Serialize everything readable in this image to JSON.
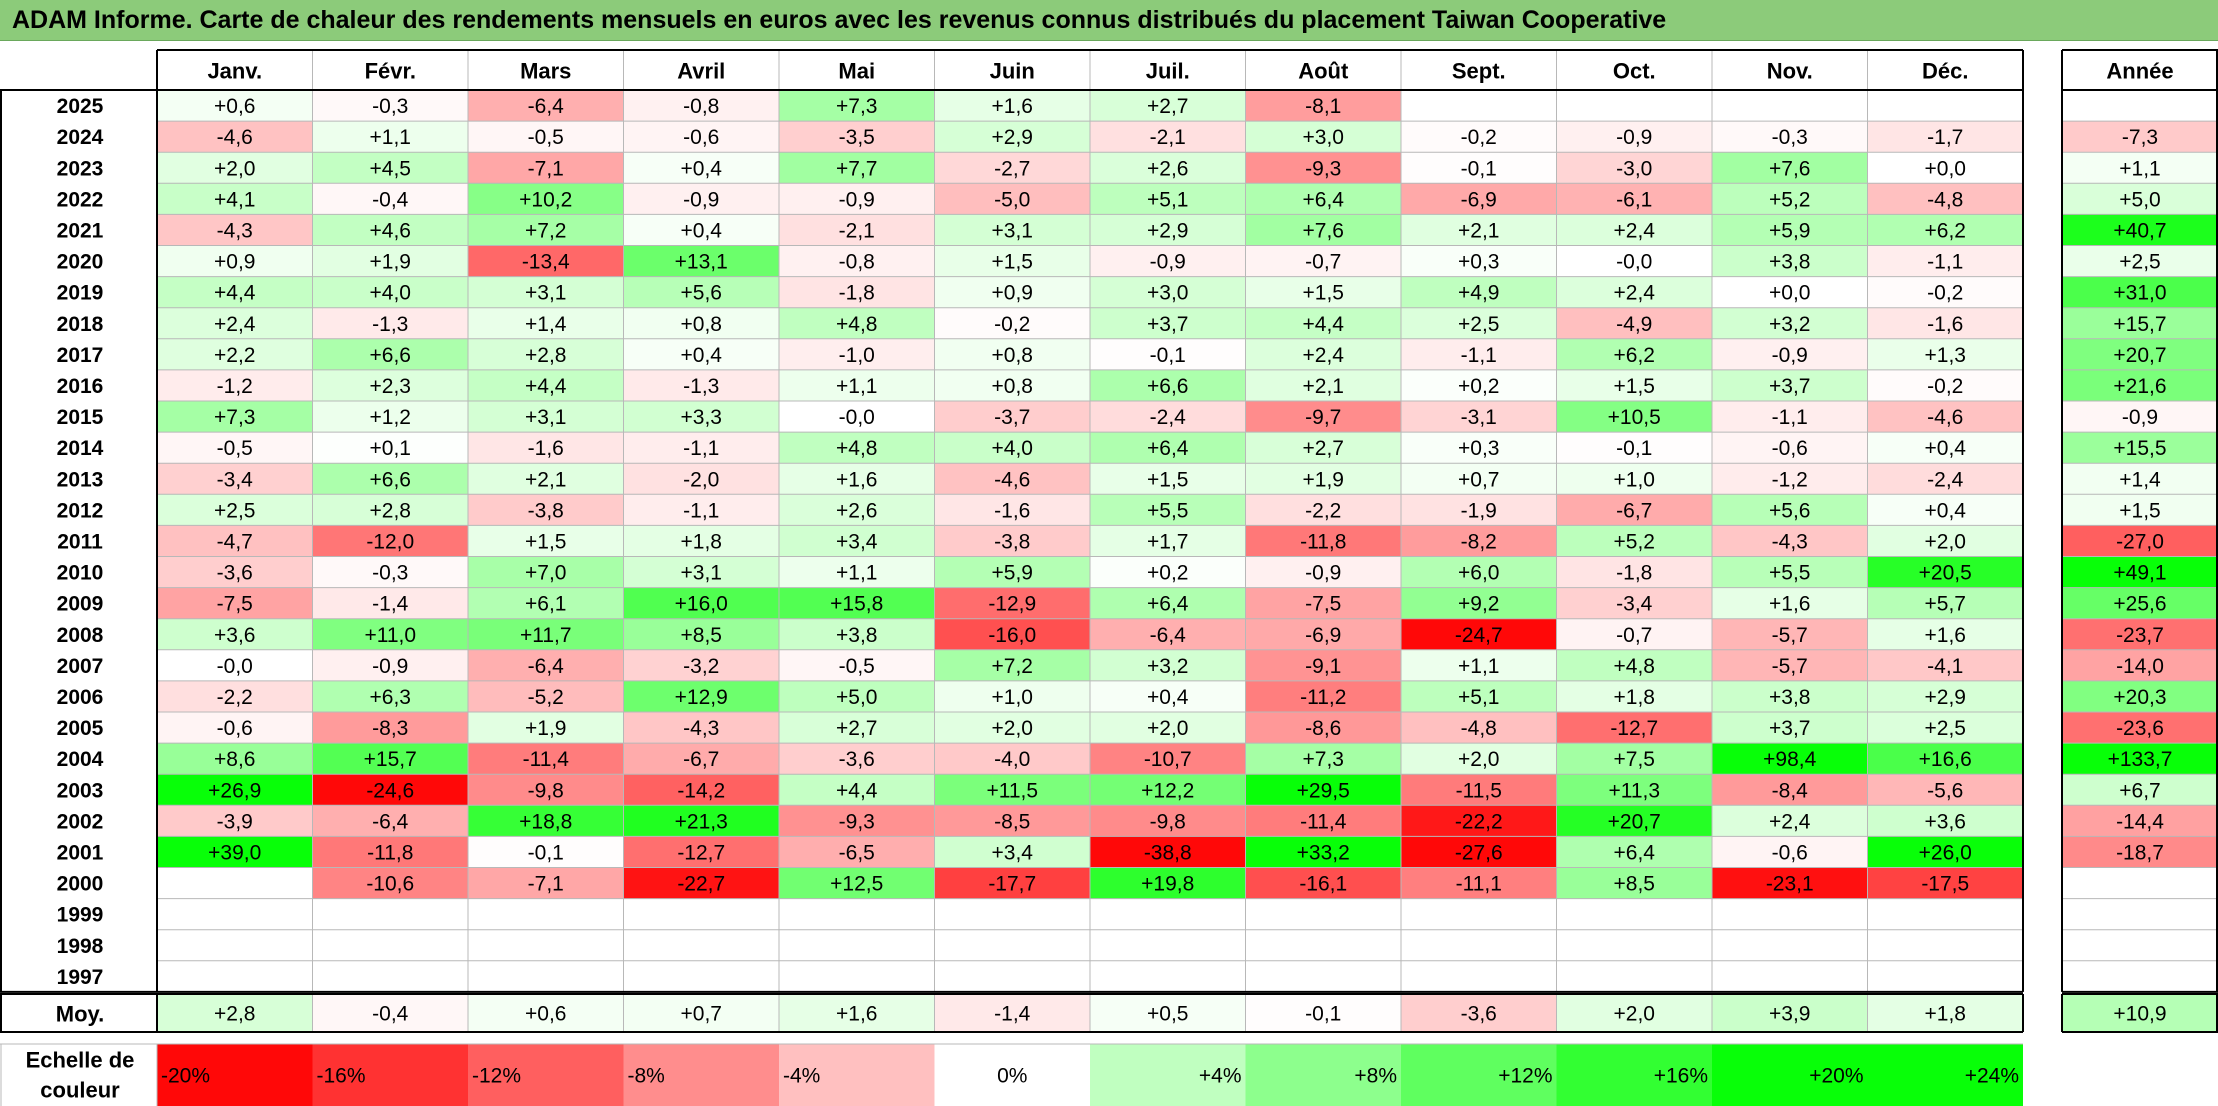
{
  "title": "ADAM Informe. Carte de chaleur des rendements mensuels en euros avec les revenus connus distribués du placement Taiwan Cooperative",
  "chart_data": {
    "type": "heatmap",
    "columns": [
      "Janv.",
      "Févr.",
      "Mars",
      "Avril",
      "Mai",
      "Juin",
      "Juil.",
      "Août",
      "Sept.",
      "Oct.",
      "Nov.",
      "Déc."
    ],
    "year_column": "Année",
    "rows": [
      {
        "label": "2025",
        "values": [
          "+0,6",
          "-0,3",
          "-6,4",
          "-0,8",
          "+7,3",
          "+1,6",
          "+2,7",
          "-8,1",
          "",
          "",
          "",
          ""
        ],
        "year": ""
      },
      {
        "label": "2024",
        "values": [
          "-4,6",
          "+1,1",
          "-0,5",
          "-0,6",
          "-3,5",
          "+2,9",
          "-2,1",
          "+3,0",
          "-0,2",
          "-0,9",
          "-0,3",
          "-1,7"
        ],
        "year": "-7,3"
      },
      {
        "label": "2023",
        "values": [
          "+2,0",
          "+4,5",
          "-7,1",
          "+0,4",
          "+7,7",
          "-2,7",
          "+2,6",
          "-9,3",
          "-0,1",
          "-3,0",
          "+7,6",
          "+0,0"
        ],
        "year": "+1,1"
      },
      {
        "label": "2022",
        "values": [
          "+4,1",
          "-0,4",
          "+10,2",
          "-0,9",
          "-0,9",
          "-5,0",
          "+5,1",
          "+6,4",
          "-6,9",
          "-6,1",
          "+5,2",
          "-4,8"
        ],
        "year": "+5,0"
      },
      {
        "label": "2021",
        "values": [
          "-4,3",
          "+4,6",
          "+7,2",
          "+0,4",
          "-2,1",
          "+3,1",
          "+2,9",
          "+7,6",
          "+2,1",
          "+2,4",
          "+5,9",
          "+6,2"
        ],
        "year": "+40,7"
      },
      {
        "label": "2020",
        "values": [
          "+0,9",
          "+1,9",
          "-13,4",
          "+13,1",
          "-0,8",
          "+1,5",
          "-0,9",
          "-0,7",
          "+0,3",
          "-0,0",
          "+3,8",
          "-1,1"
        ],
        "year": "+2,5"
      },
      {
        "label": "2019",
        "values": [
          "+4,4",
          "+4,0",
          "+3,1",
          "+5,6",
          "-1,8",
          "+0,9",
          "+3,0",
          "+1,5",
          "+4,9",
          "+2,4",
          "+0,0",
          "-0,2"
        ],
        "year": "+31,0"
      },
      {
        "label": "2018",
        "values": [
          "+2,4",
          "-1,3",
          "+1,4",
          "+0,8",
          "+4,8",
          "-0,2",
          "+3,7",
          "+4,4",
          "+2,5",
          "-4,9",
          "+3,2",
          "-1,6"
        ],
        "year": "+15,7"
      },
      {
        "label": "2017",
        "values": [
          "+2,2",
          "+6,6",
          "+2,8",
          "+0,4",
          "-1,0",
          "+0,8",
          "-0,1",
          "+2,4",
          "-1,1",
          "+6,2",
          "-0,9",
          "+1,3"
        ],
        "year": "+20,7"
      },
      {
        "label": "2016",
        "values": [
          "-1,2",
          "+2,3",
          "+4,4",
          "-1,3",
          "+1,1",
          "+0,8",
          "+6,6",
          "+2,1",
          "+0,2",
          "+1,5",
          "+3,7",
          "-0,2"
        ],
        "year": "+21,6"
      },
      {
        "label": "2015",
        "values": [
          "+7,3",
          "+1,2",
          "+3,1",
          "+3,3",
          "-0,0",
          "-3,7",
          "-2,4",
          "-9,7",
          "-3,1",
          "+10,5",
          "-1,1",
          "-4,6"
        ],
        "year": "-0,9"
      },
      {
        "label": "2014",
        "values": [
          "-0,5",
          "+0,1",
          "-1,6",
          "-1,1",
          "+4,8",
          "+4,0",
          "+6,4",
          "+2,7",
          "+0,3",
          "-0,1",
          "-0,6",
          "+0,4"
        ],
        "year": "+15,5"
      },
      {
        "label": "2013",
        "values": [
          "-3,4",
          "+6,6",
          "+2,1",
          "-2,0",
          "+1,6",
          "-4,6",
          "+1,5",
          "+1,9",
          "+0,7",
          "+1,0",
          "-1,2",
          "-2,4"
        ],
        "year": "+1,4"
      },
      {
        "label": "2012",
        "values": [
          "+2,5",
          "+2,8",
          "-3,8",
          "-1,1",
          "+2,6",
          "-1,6",
          "+5,5",
          "-2,2",
          "-1,9",
          "-6,7",
          "+5,6",
          "+0,4"
        ],
        "year": "+1,5"
      },
      {
        "label": "2011",
        "values": [
          "-4,7",
          "-12,0",
          "+1,5",
          "+1,8",
          "+3,4",
          "-3,8",
          "+1,7",
          "-11,8",
          "-8,2",
          "+5,2",
          "-4,3",
          "+2,0"
        ],
        "year": "-27,0"
      },
      {
        "label": "2010",
        "values": [
          "-3,6",
          "-0,3",
          "+7,0",
          "+3,1",
          "+1,1",
          "+5,9",
          "+0,2",
          "-0,9",
          "+6,0",
          "-1,8",
          "+5,5",
          "+20,5"
        ],
        "year": "+49,1"
      },
      {
        "label": "2009",
        "values": [
          "-7,5",
          "-1,4",
          "+6,1",
          "+16,0",
          "+15,8",
          "-12,9",
          "+6,4",
          "-7,5",
          "+9,2",
          "-3,4",
          "+1,6",
          "+5,7"
        ],
        "year": "+25,6"
      },
      {
        "label": "2008",
        "values": [
          "+3,6",
          "+11,0",
          "+11,7",
          "+8,5",
          "+3,8",
          "-16,0",
          "-6,4",
          "-6,9",
          "-24,7",
          "-0,7",
          "-5,7",
          "+1,6"
        ],
        "year": "-23,7"
      },
      {
        "label": "2007",
        "values": [
          "-0,0",
          "-0,9",
          "-6,4",
          "-3,2",
          "-0,5",
          "+7,2",
          "+3,2",
          "-9,1",
          "+1,1",
          "+4,8",
          "-5,7",
          "-4,1"
        ],
        "year": "-14,0"
      },
      {
        "label": "2006",
        "values": [
          "-2,2",
          "+6,3",
          "-5,2",
          "+12,9",
          "+5,0",
          "+1,0",
          "+0,4",
          "-11,2",
          "+5,1",
          "+1,8",
          "+3,8",
          "+2,9"
        ],
        "year": "+20,3"
      },
      {
        "label": "2005",
        "values": [
          "-0,6",
          "-8,3",
          "+1,9",
          "-4,3",
          "+2,7",
          "+2,0",
          "+2,0",
          "-8,6",
          "-4,8",
          "-12,7",
          "+3,7",
          "+2,5"
        ],
        "year": "-23,6"
      },
      {
        "label": "2004",
        "values": [
          "+8,6",
          "+15,7",
          "-11,4",
          "-6,7",
          "-3,6",
          "-4,0",
          "-10,7",
          "+7,3",
          "+2,0",
          "+7,5",
          "+98,4",
          "+16,6"
        ],
        "year": "+133,7"
      },
      {
        "label": "2003",
        "values": [
          "+26,9",
          "-24,6",
          "-9,8",
          "-14,2",
          "+4,4",
          "+11,5",
          "+12,2",
          "+29,5",
          "-11,5",
          "+11,3",
          "-8,4",
          "-5,6"
        ],
        "year": "+6,7"
      },
      {
        "label": "2002",
        "values": [
          "-3,9",
          "-6,4",
          "+18,8",
          "+21,3",
          "-9,3",
          "-8,5",
          "-9,8",
          "-11,4",
          "-22,2",
          "+20,7",
          "+2,4",
          "+3,6"
        ],
        "year": "-14,4"
      },
      {
        "label": "2001",
        "values": [
          "+39,0",
          "-11,8",
          "-0,1",
          "-12,7",
          "-6,5",
          "+3,4",
          "-38,8",
          "+33,2",
          "-27,6",
          "+6,4",
          "-0,6",
          "+26,0"
        ],
        "year": "-18,7"
      },
      {
        "label": "2000",
        "values": [
          "",
          "-10,6",
          "-7,1",
          "-22,7",
          "+12,5",
          "-17,7",
          "+19,8",
          "-16,1",
          "-11,1",
          "+8,5",
          "-23,1",
          "-17,5"
        ],
        "year": ""
      },
      {
        "label": "1999",
        "values": [
          "",
          "",
          "",
          "",
          "",
          "",
          "",
          "",
          "",
          "",
          "",
          ""
        ],
        "year": ""
      },
      {
        "label": "1998",
        "values": [
          "",
          "",
          "",
          "",
          "",
          "",
          "",
          "",
          "",
          "",
          "",
          ""
        ],
        "year": ""
      },
      {
        "label": "1997",
        "values": [
          "",
          "",
          "",
          "",
          "",
          "",
          "",
          "",
          "",
          "",
          "",
          ""
        ],
        "year": ""
      }
    ],
    "average": {
      "label": "Moy.",
      "values": [
        "+2,8",
        "-0,4",
        "+0,6",
        "+0,7",
        "+1,6",
        "-1,4",
        "+0,5",
        "-0,1",
        "-3,6",
        "+2,0",
        "+3,9",
        "+1,8"
      ],
      "year": "+10,9"
    },
    "scale": {
      "label_line1": "Echelle de",
      "label_line2": "couleur",
      "steps": [
        "-20%",
        "-16%",
        "-12%",
        "-8%",
        "-4%",
        "0%",
        "+4%",
        "+8%",
        "+12%",
        "+16%",
        "+20%",
        "+24%"
      ],
      "step_values": [
        -20,
        -16,
        -12,
        -8,
        -4,
        0,
        4,
        8,
        12,
        16,
        20,
        24
      ]
    },
    "colors": {
      "negative": "#ff0000",
      "positive": "#00ff00",
      "neutral": "#ffffff",
      "title_background": "#8ccb7a"
    }
  }
}
